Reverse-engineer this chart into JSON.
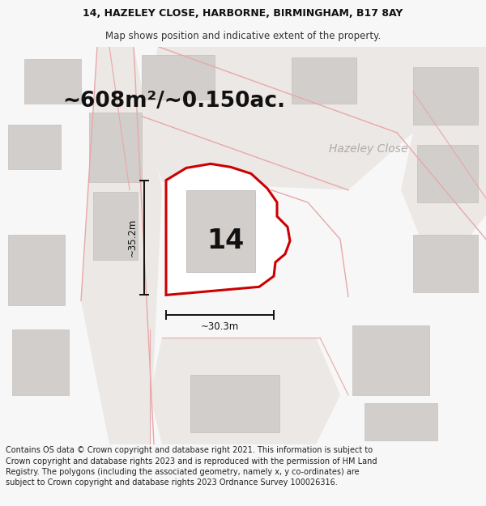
{
  "title_line1": "14, HAZELEY CLOSE, HARBORNE, BIRMINGHAM, B17 8AY",
  "title_line2": "Map shows position and indicative extent of the property.",
  "area_text": "~608m²/~0.150ac.",
  "number_label": "14",
  "dim_vertical": "~35.2m",
  "dim_horizontal": "~30.3m",
  "street_label": "Hazeley Close",
  "footer_text": "Contains OS data © Crown copyright and database right 2021. This information is subject to Crown copyright and database rights 2023 and is reproduced with the permission of HM Land Registry. The polygons (including the associated geometry, namely x, y co-ordinates) are subject to Crown copyright and database rights 2023 Ordnance Survey 100026316.",
  "bg_color": "#f7f7f7",
  "map_bg": "#f5f2ef",
  "plot_fill": "#ffffff",
  "plot_edge": "#cc0000",
  "building_fill": "#d2cecc",
  "road_line": "#e8a8a8",
  "dim_line_color": "#111111",
  "title_fontsize": 9.0,
  "area_fontsize": 19,
  "number_fontsize": 24,
  "street_fontsize": 10,
  "footer_fontsize": 7.0
}
